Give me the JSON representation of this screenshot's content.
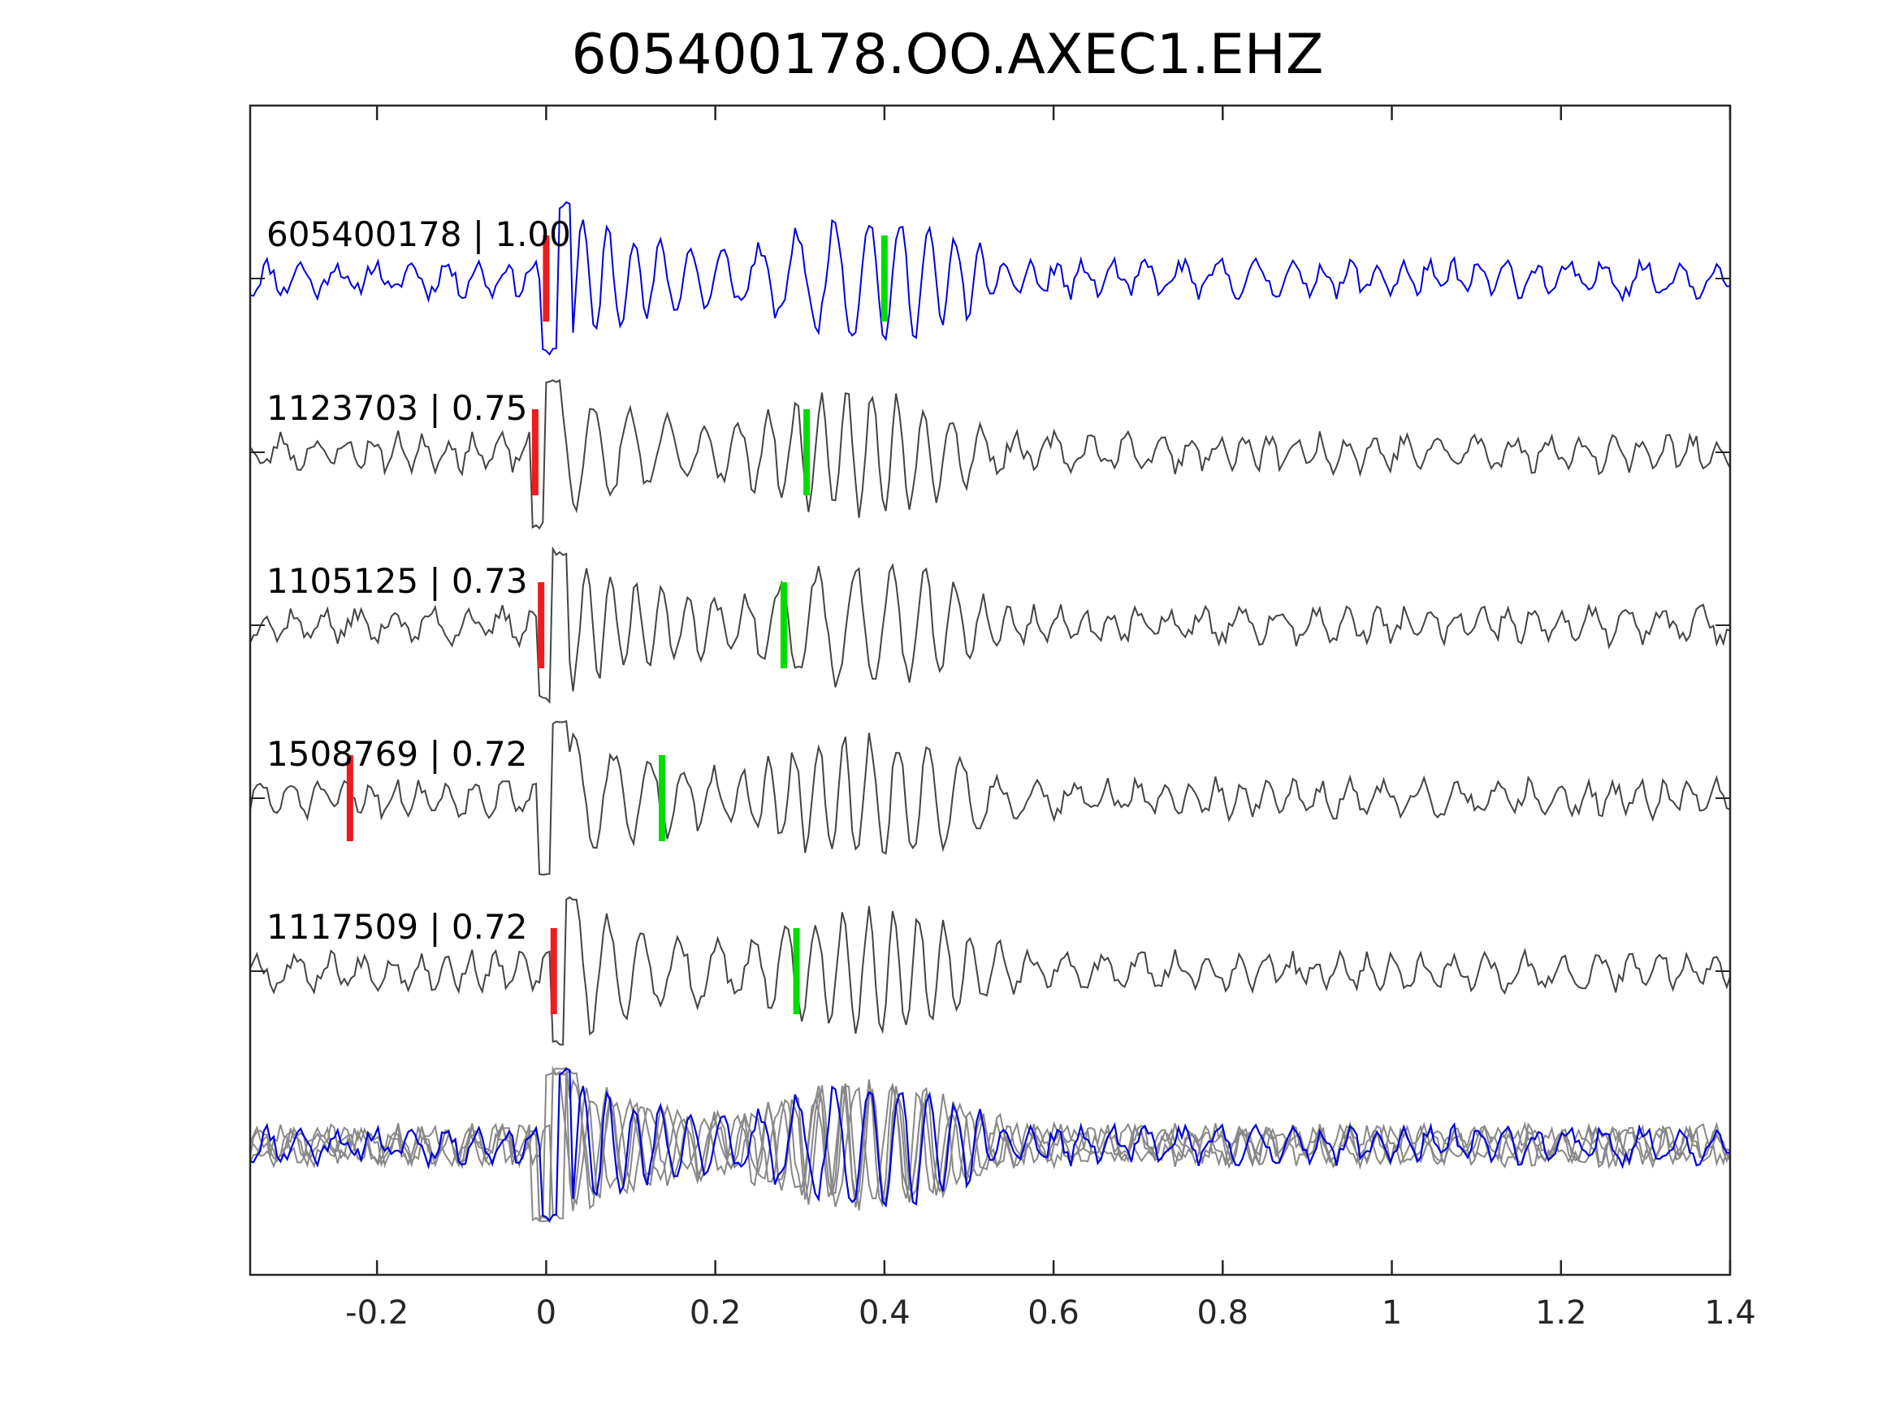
{
  "chart_data": {
    "type": "line",
    "title": "605400178.OO.AXEC1.EHZ",
    "xlabel": "",
    "ylabel": "",
    "xlim": [
      -0.35,
      1.4
    ],
    "xticks": [
      -0.2,
      0,
      0.2,
      0.4,
      0.6,
      0.8,
      1,
      1.2,
      1.4
    ],
    "xtick_labels": [
      "-0.2",
      "0",
      "0.2",
      "0.4",
      "0.6",
      "0.8",
      "1",
      "1.2",
      "1.4"
    ],
    "grid": false,
    "colors": {
      "template": "#0000dd",
      "match": "#444444",
      "overlay_match": "#888888",
      "p_pick": "#ee1c1c",
      "s_pick": "#00dd00"
    },
    "series": [
      {
        "label": "605400178 | 1.00",
        "p_pick": 0.0,
        "s_pick": 0.4,
        "color": "#0000dd",
        "seed": 11,
        "phase": 0.0
      },
      {
        "label": "1123703 | 0.75",
        "p_pick": -0.013,
        "s_pick": 0.308,
        "color": "#444444",
        "seed": 23,
        "phase": -0.013
      },
      {
        "label": "1105125 | 0.73",
        "p_pick": -0.006,
        "s_pick": 0.281,
        "color": "#444444",
        "seed": 37,
        "phase": -0.006
      },
      {
        "label": "1508769 | 0.72",
        "p_pick": -0.232,
        "s_pick": 0.137,
        "color": "#444444",
        "seed": 51,
        "phase": -0.005
      },
      {
        "label": "1117509 | 0.72",
        "p_pick": 0.009,
        "s_pick": 0.296,
        "color": "#444444",
        "seed": 67,
        "phase": 0.008
      }
    ]
  }
}
